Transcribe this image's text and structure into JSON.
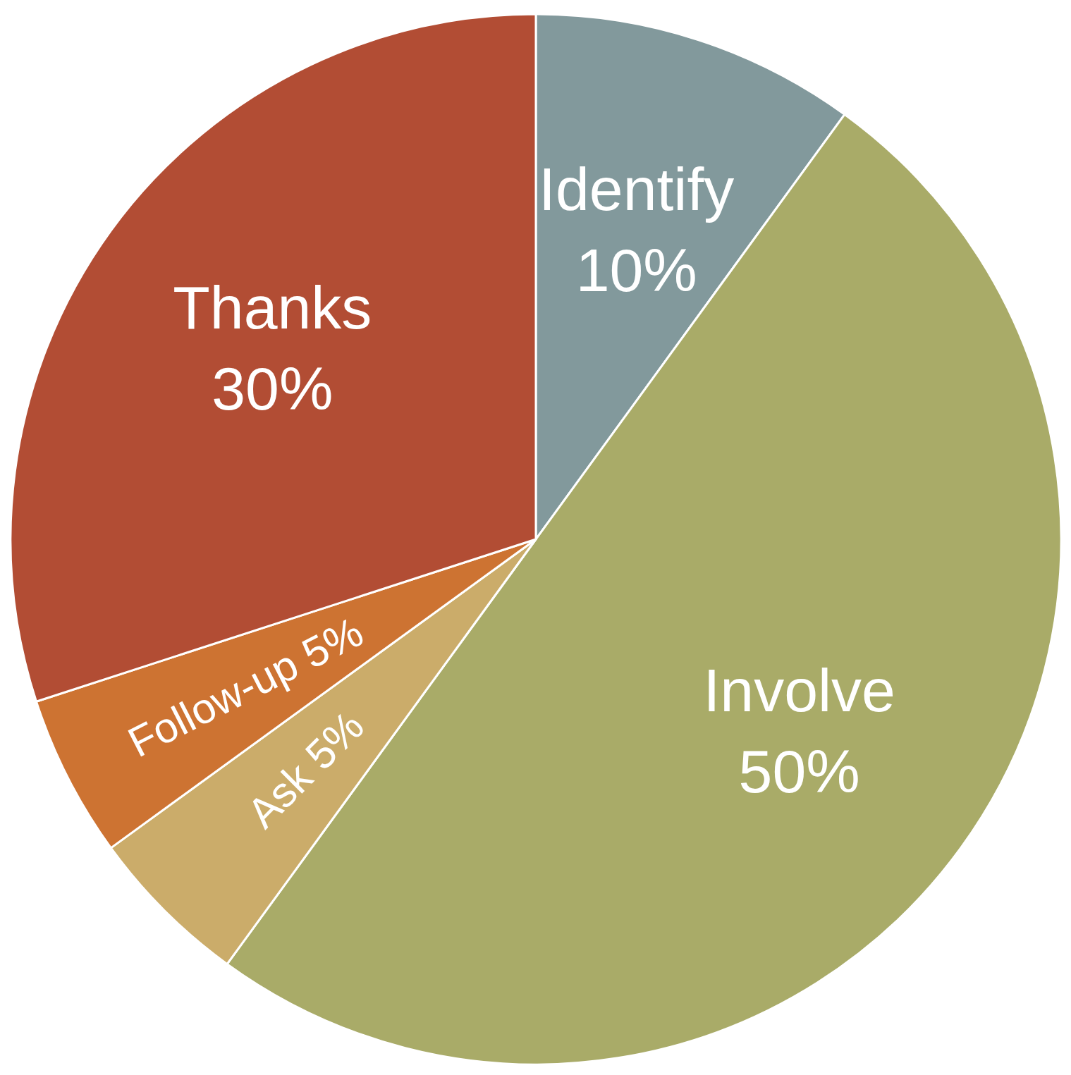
{
  "chart_data": {
    "type": "pie",
    "categories": [
      "Identify",
      "Involve",
      "Ask",
      "Follow-up",
      "Thanks"
    ],
    "values": [
      10,
      50,
      5,
      5,
      30
    ],
    "colors": [
      "#82999c",
      "#a9ab68",
      "#cbac6a",
      "#cd7332",
      "#b24d34"
    ],
    "value_labels": [
      "10%",
      "50%",
      "5%",
      "5%",
      "30%"
    ],
    "legend": false
  }
}
